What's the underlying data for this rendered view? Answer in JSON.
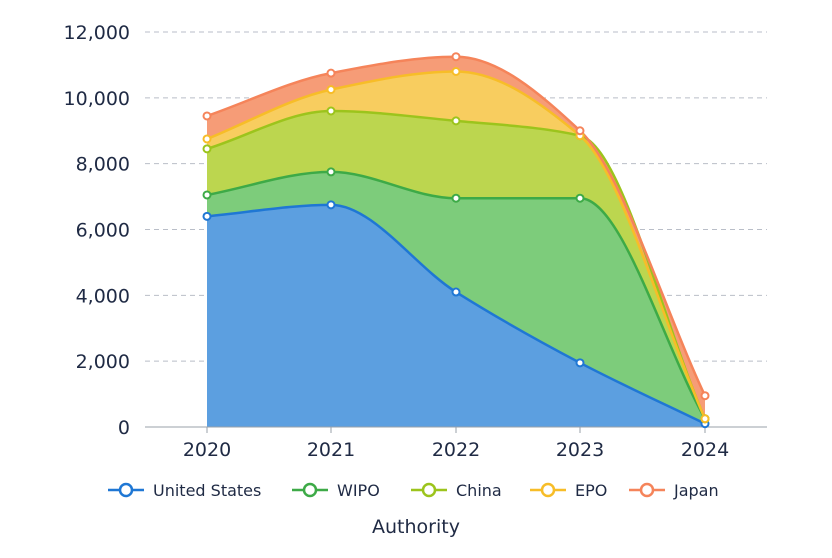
{
  "chart_data": {
    "type": "area",
    "stacked": true,
    "smooth": true,
    "categories": [
      "2020",
      "2021",
      "2022",
      "2023",
      "2024"
    ],
    "series": [
      {
        "name": "United States",
        "values": [
          6400,
          6750,
          4100,
          1950,
          100
        ],
        "color": "#1f77d4",
        "fill": "#5c9fe0"
      },
      {
        "name": "WIPO",
        "values": [
          650,
          1000,
          2850,
          5000,
          150
        ],
        "color": "#3daa47",
        "fill": "#7dcc7b"
      },
      {
        "name": "China",
        "values": [
          1400,
          1850,
          2350,
          1900,
          0
        ],
        "color": "#9cc41c",
        "fill": "#bcd64f"
      },
      {
        "name": "EPO",
        "values": [
          300,
          650,
          1500,
          0,
          0
        ],
        "color": "#f7bd28",
        "fill": "#f8cd5f"
      },
      {
        "name": "Japan",
        "values": [
          700,
          500,
          450,
          150,
          700
        ],
        "color": "#f5845a",
        "fill": "#f69c77"
      }
    ],
    "xlabel": "Authority",
    "ylabel": "",
    "ylim": [
      0,
      12000
    ],
    "yticks": [
      0,
      2000,
      4000,
      6000,
      8000,
      10000,
      12000
    ],
    "ytick_labels": [
      "0",
      "2,000",
      "4,000",
      "6,000",
      "8,000",
      "10,000",
      "12,000"
    ],
    "grid": "horizontal dashed",
    "legend_position": "bottom"
  }
}
